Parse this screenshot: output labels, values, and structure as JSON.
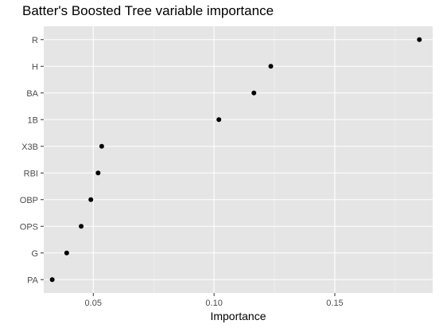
{
  "chart_data": {
    "type": "scatter",
    "title": "Batter's Boosted Tree variable importance",
    "xlabel": "Importance",
    "ylabel": "",
    "xlim": [
      0.0295,
      0.1905
    ],
    "x_ticks": [
      0.05,
      0.1,
      0.15
    ],
    "x_tick_labels": [
      "0.05",
      "0.10",
      "0.15"
    ],
    "x_minor_ticks": [
      0.075,
      0.125,
      0.175
    ],
    "categories": [
      "PA",
      "G",
      "OPS",
      "OBP",
      "RBI",
      "X3B",
      "1B",
      "BA",
      "H",
      "R"
    ],
    "values": [
      0.033,
      0.039,
      0.045,
      0.049,
      0.052,
      0.0535,
      0.102,
      0.1165,
      0.1235,
      0.185
    ],
    "grid": true,
    "legend": "none"
  },
  "colors": {
    "panel": "#e5e5e5",
    "grid_major": "#ffffff",
    "grid_minor": "#f2f2f2",
    "point": "#000000",
    "tick": "#333333",
    "tick_label": "#4d4d4d"
  }
}
